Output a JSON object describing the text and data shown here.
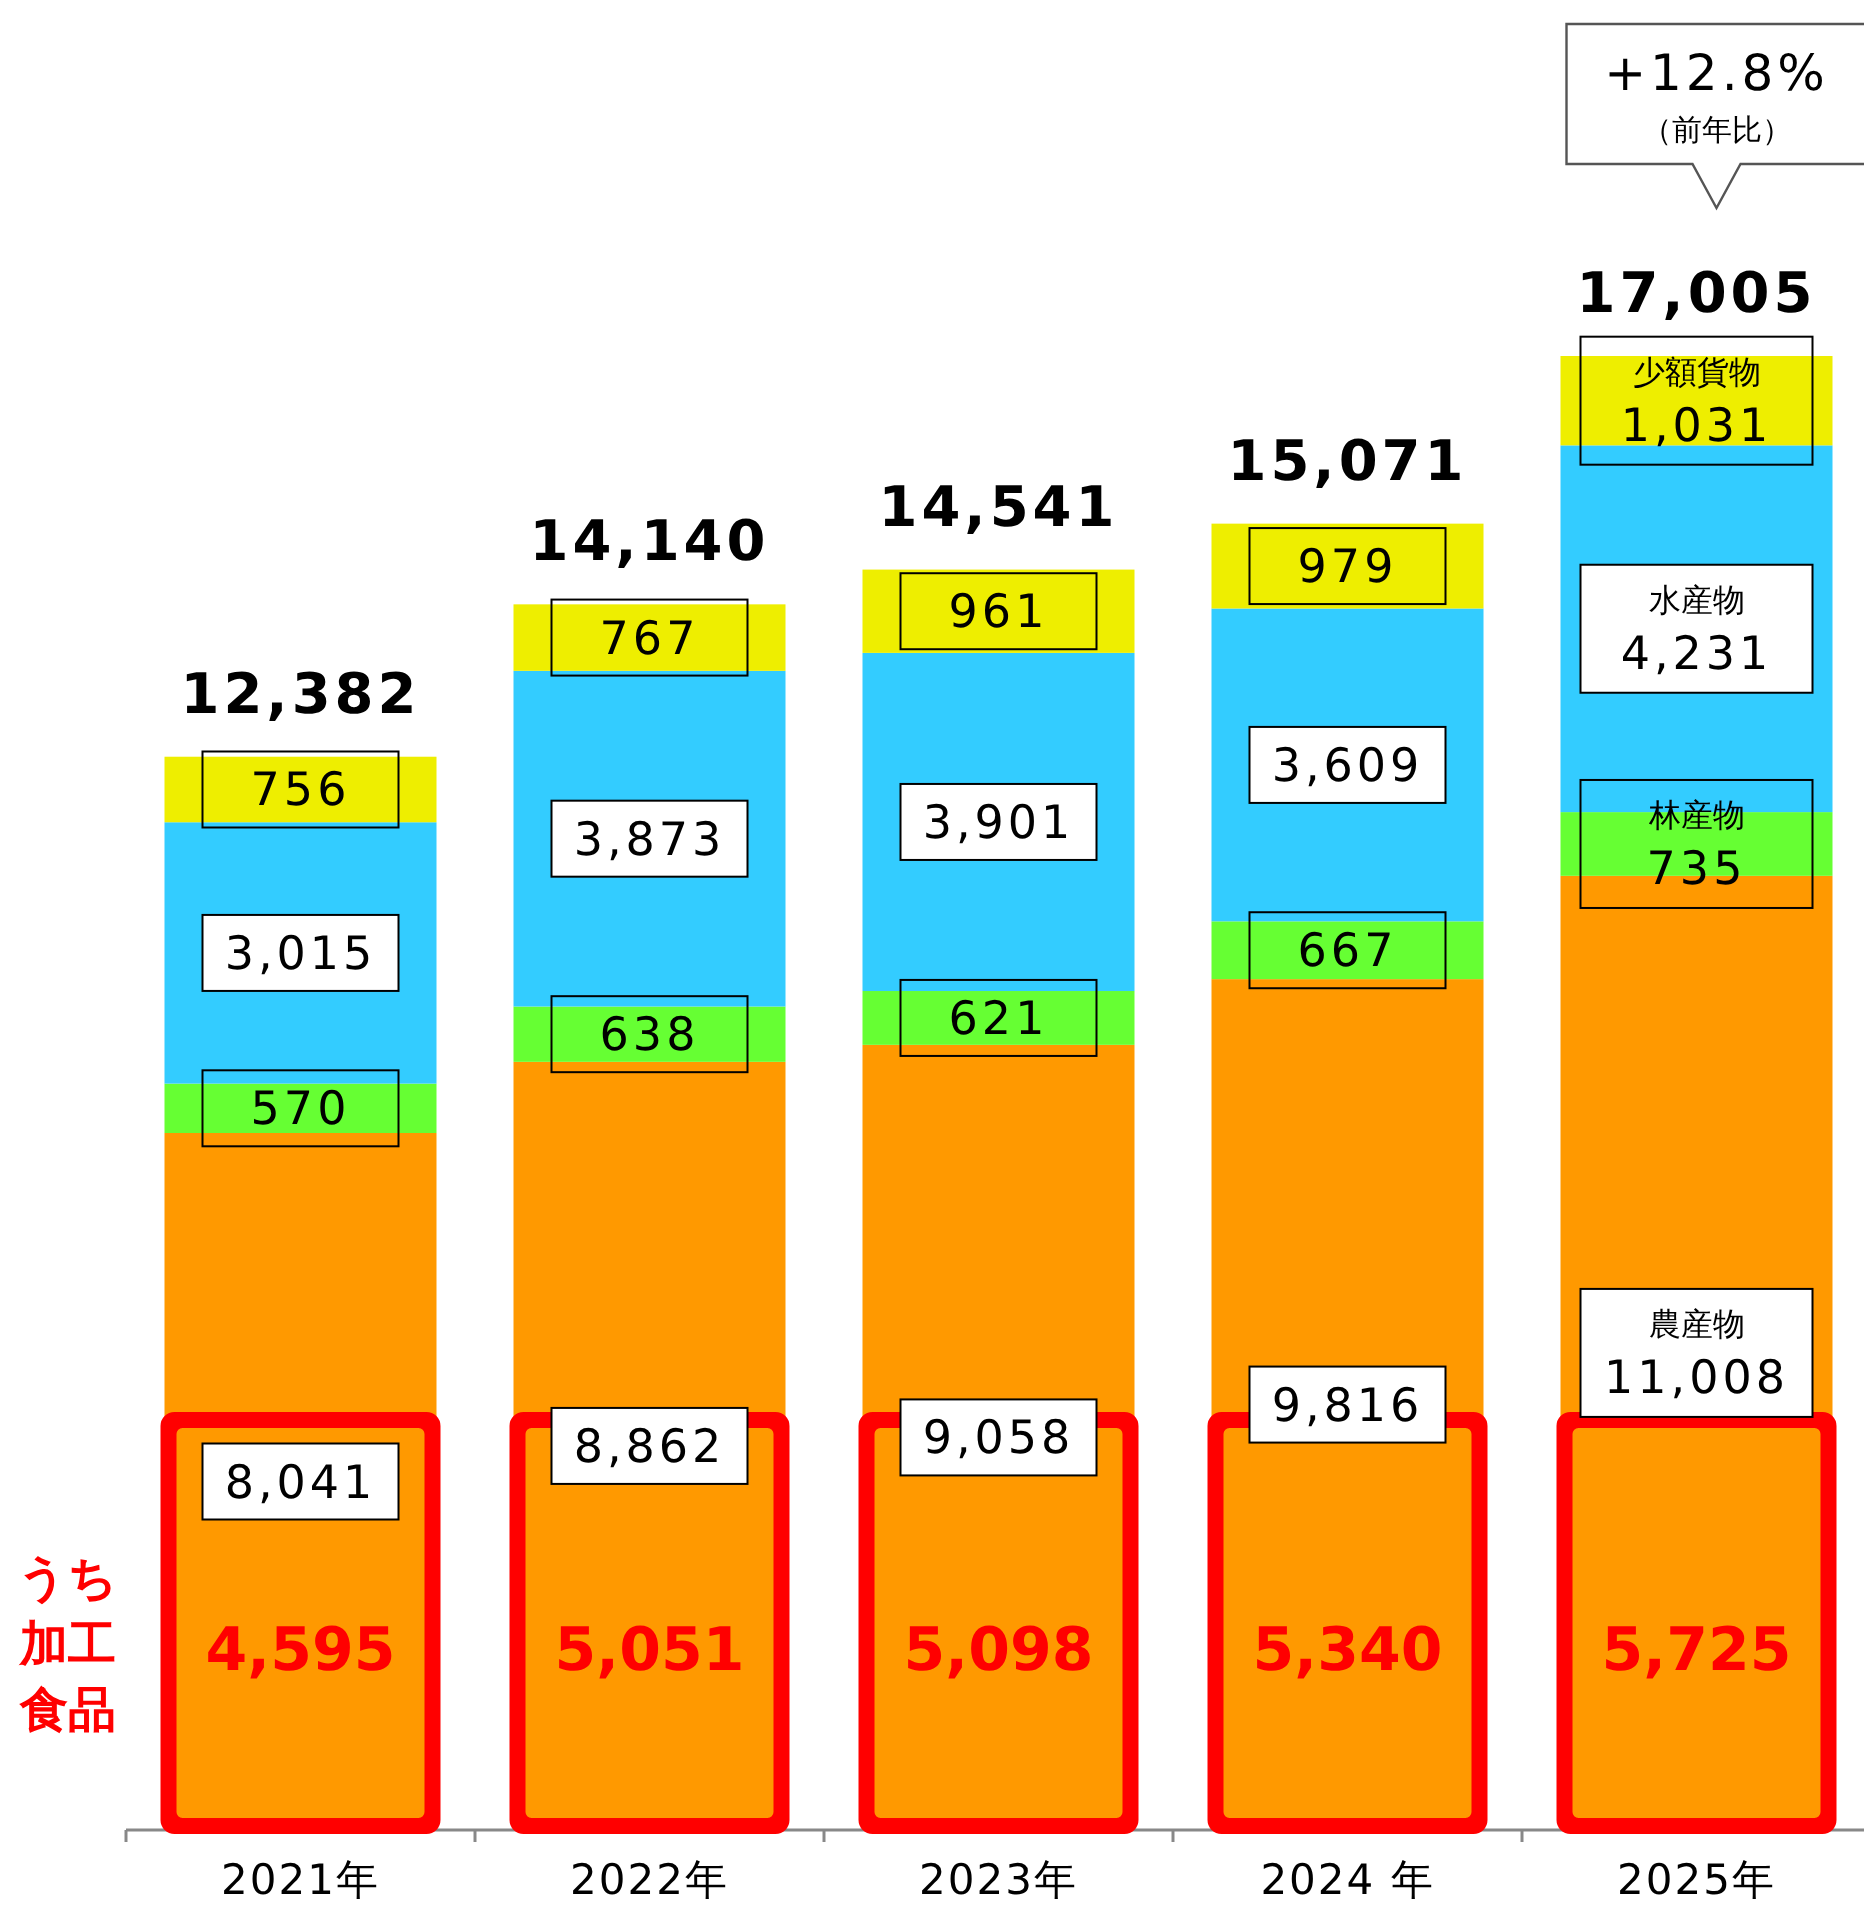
{
  "chart_data": {
    "type": "bar",
    "stacked": true,
    "categories": [
      "2021年",
      "2022年",
      "2023年",
      "2024 年",
      "2025年"
    ],
    "series": [
      {
        "name": "農産物",
        "color": "#ff9900",
        "values": [
          8041,
          8862,
          9058,
          9816,
          11008
        ],
        "value_labels": [
          "8,041",
          "8,862",
          "9,058",
          "9,816",
          "11,008"
        ]
      },
      {
        "name": "林産物",
        "color": "#66ff33",
        "values": [
          570,
          638,
          621,
          667,
          735
        ],
        "value_labels": [
          "570",
          "638",
          "621",
          "667",
          "735"
        ]
      },
      {
        "name": "水産物",
        "color": "#33ccff",
        "values": [
          3015,
          3873,
          3901,
          3609,
          4231
        ],
        "value_labels": [
          "3,015",
          "3,873",
          "3,901",
          "3,609",
          "4,231"
        ]
      },
      {
        "name": "少額貨物",
        "color": "#eeee00",
        "values": [
          756,
          767,
          961,
          979,
          1031
        ],
        "value_labels": [
          "756",
          "767",
          "961",
          "979",
          "1,031"
        ]
      }
    ],
    "totals": [
      "12,382",
      "14,140",
      "14,541",
      "15,071",
      "17,005"
    ],
    "annotations": [
      "うち加工食品",
      "+12.8%\n（前年比）",
      "4,595",
      "5,051",
      "5,098",
      "5,340",
      "5,725"
    ]
  }
}
